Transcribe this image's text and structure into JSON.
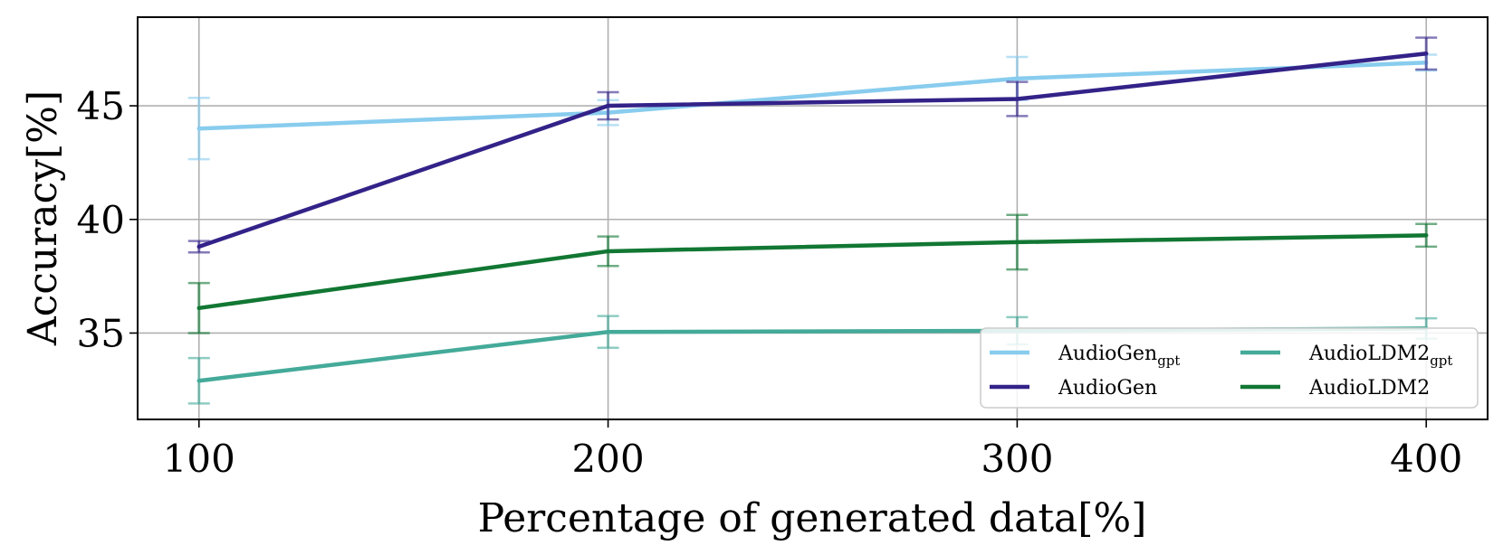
{
  "chart_data": {
    "type": "line",
    "title": "",
    "xlabel": "Percentage of generated data[%]",
    "ylabel": "Accuracy[%]",
    "x": [
      100,
      200,
      300,
      400
    ],
    "xticks": [
      "100",
      "200",
      "300",
      "400"
    ],
    "yticks": [
      "35",
      "40",
      "45"
    ],
    "xlim": [
      85,
      415
    ],
    "ylim": [
      31.2,
      48.9
    ],
    "grid": true,
    "legend_position": "lower-right",
    "series": [
      {
        "name": "AudioGen",
        "sub": "gpt",
        "color": "#88CCEE",
        "values": [
          44.0,
          44.7,
          46.2,
          46.9
        ],
        "errors": [
          1.35,
          0.55,
          0.95,
          0.35
        ]
      },
      {
        "name": "AudioGen",
        "sub": "",
        "color": "#332288",
        "values": [
          38.8,
          45.0,
          45.3,
          47.3
        ],
        "errors": [
          0.25,
          0.6,
          0.75,
          0.7
        ]
      },
      {
        "name": "AudioLDM2",
        "sub": "gpt",
        "color": "#44AA99",
        "values": [
          32.9,
          35.05,
          35.1,
          35.2
        ],
        "errors": [
          1.0,
          0.7,
          0.6,
          0.45
        ]
      },
      {
        "name": "AudioLDM2",
        "sub": "",
        "color": "#117733",
        "values": [
          36.1,
          38.6,
          39.0,
          39.3
        ],
        "errors": [
          1.1,
          0.65,
          1.2,
          0.5
        ]
      }
    ]
  }
}
